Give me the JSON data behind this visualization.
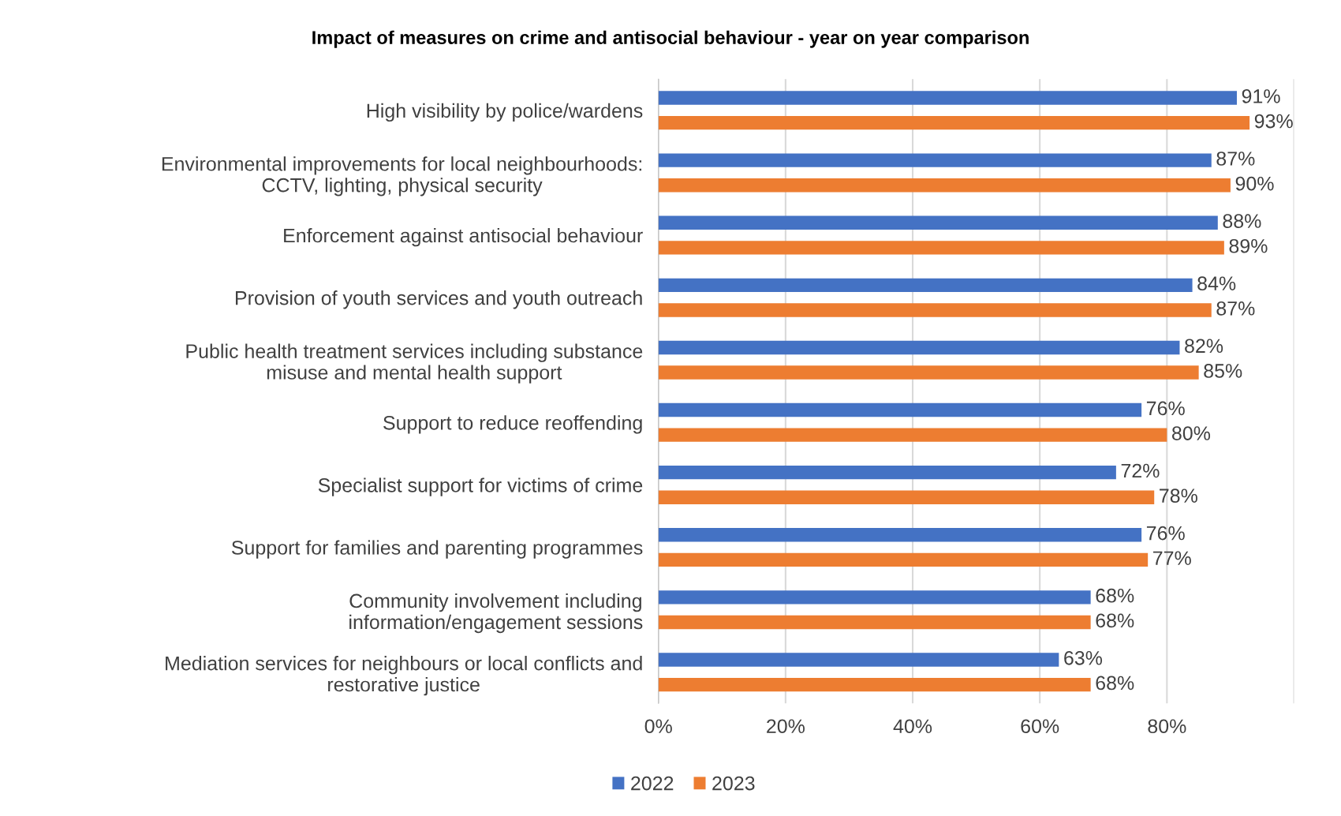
{
  "chart_data": {
    "type": "bar",
    "orientation": "horizontal",
    "title": "Impact of measures on crime and antisocial behaviour - year on year comparison",
    "categories": [
      "High visibility by police/wardens",
      "Environmental improvements for local neighbourhoods:\nCCTV, lighting, physical security",
      "Enforcement against antisocial behaviour",
      "Provision of youth services and youth outreach",
      "Public health treatment services including substance\nmisuse and mental health support",
      "Support to reduce reoffending",
      "Specialist support for victims of crime",
      "Support for families and parenting programmes",
      "Community involvement including\ninformation/engagement sessions",
      "Mediation services for neighbours or local conflicts and\nrestorative justice"
    ],
    "series": [
      {
        "name": "2022",
        "color": "#4472c4",
        "values": [
          91,
          87,
          88,
          84,
          82,
          76,
          72,
          76,
          68,
          63
        ],
        "value_labels": [
          "91%",
          "87%",
          "88%",
          "84%",
          "82%",
          "76%",
          "72%",
          "76%",
          "68%",
          "63%"
        ]
      },
      {
        "name": "2023",
        "color": "#ed7d31",
        "values": [
          93,
          90,
          89,
          87,
          85,
          80,
          78,
          77,
          68,
          68
        ],
        "value_labels": [
          "93%",
          "90%",
          "89%",
          "87%",
          "85%",
          "80%",
          "78%",
          "77%",
          "68%",
          "68%"
        ]
      }
    ],
    "xlim": [
      0,
      100
    ],
    "xticks": [
      {
        "value": 0,
        "label": "0%"
      },
      {
        "value": 20,
        "label": "20%"
      },
      {
        "value": 40,
        "label": "40%"
      },
      {
        "value": 60,
        "label": "60%"
      },
      {
        "value": 80,
        "label": "80%"
      },
      {
        "value": 100,
        "label": null
      }
    ],
    "grid": "x",
    "legend": "bottom"
  }
}
